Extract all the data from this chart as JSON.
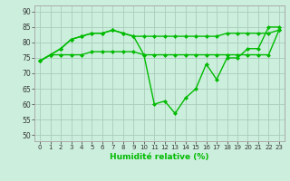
{
  "xlabel": "Humidité relative (%)",
  "bg_color": "#cceedd",
  "grid_color": "#aaccbb",
  "line_color": "#00bb00",
  "marker": "D",
  "marker_size": 2,
  "line_width": 1.0,
  "ylim": [
    48,
    92
  ],
  "yticks": [
    50,
    55,
    60,
    65,
    70,
    75,
    80,
    85,
    90
  ],
  "xticks": [
    0,
    1,
    2,
    3,
    4,
    5,
    6,
    7,
    8,
    9,
    10,
    11,
    12,
    13,
    14,
    15,
    16,
    17,
    18,
    19,
    20,
    21,
    22,
    23
  ],
  "series1": [
    74,
    76,
    78,
    81,
    82,
    83,
    83,
    84,
    83,
    82,
    76,
    60,
    61,
    57,
    62,
    65,
    73,
    68,
    75,
    75,
    78,
    78,
    85,
    85
  ],
  "series2": [
    74,
    76,
    78,
    81,
    82,
    83,
    83,
    84,
    83,
    82,
    82,
    82,
    82,
    82,
    82,
    82,
    82,
    82,
    83,
    83,
    83,
    83,
    83,
    84
  ],
  "series3": [
    74,
    76,
    76,
    76,
    76,
    77,
    77,
    77,
    77,
    77,
    76,
    76,
    76,
    76,
    76,
    76,
    76,
    76,
    76,
    76,
    76,
    76,
    76,
    84
  ]
}
